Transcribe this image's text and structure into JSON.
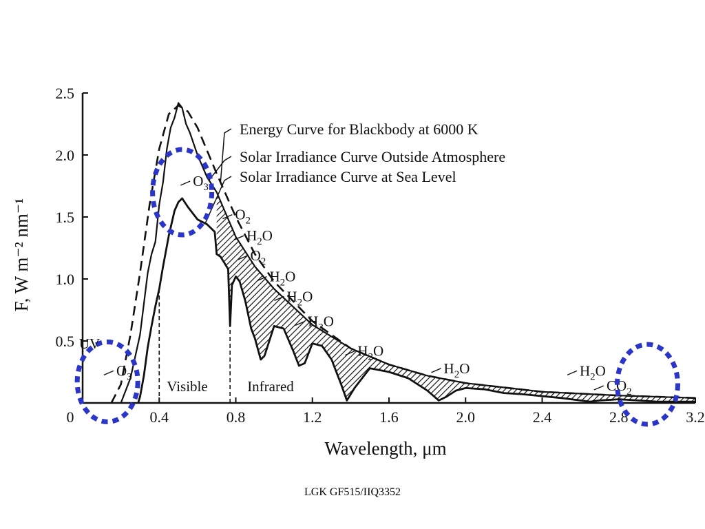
{
  "footer": {
    "caption": "LGK GF515/IIQ3352"
  },
  "colors": {
    "ink": "#111111",
    "highlight": "#2b35c8",
    "background": "#ffffff"
  },
  "chart_data": {
    "type": "line",
    "xlabel": "Wavelength, μm",
    "ylabel": "F,  W m⁻² nm⁻¹",
    "xlim": [
      0,
      3.2
    ],
    "ylim": [
      0,
      2.5
    ],
    "x_ticks": [
      {
        "value": 0,
        "label": "0"
      },
      {
        "value": 0.4,
        "label": "0.4"
      },
      {
        "value": 0.8,
        "label": "0.8"
      },
      {
        "value": 1.2,
        "label": "1.2"
      },
      {
        "value": 1.6,
        "label": "1.6"
      },
      {
        "value": 2.0,
        "label": "2.0"
      },
      {
        "value": 2.4,
        "label": "2.4"
      },
      {
        "value": 2.8,
        "label": "2.8"
      },
      {
        "value": 3.2,
        "label": "3.2"
      }
    ],
    "y_ticks": [
      {
        "value": 0.5,
        "label": "0.5"
      },
      {
        "value": 1.0,
        "label": "1.0"
      },
      {
        "value": 1.5,
        "label": "1.5"
      },
      {
        "value": 2.0,
        "label": "2.0"
      },
      {
        "value": 2.5,
        "label": "2.5"
      }
    ],
    "grid": false,
    "series": [
      {
        "name": "Energy Curve for Blackbody at 6000 K",
        "style": "dashed",
        "x": [
          0.15,
          0.2,
          0.25,
          0.3,
          0.35,
          0.4,
          0.45,
          0.5,
          0.55,
          0.6,
          0.7,
          0.8,
          0.9,
          1.0,
          1.2,
          1.4,
          1.6,
          1.8,
          2.0,
          2.4,
          2.8,
          3.2
        ],
        "y": [
          0.0,
          0.15,
          0.55,
          1.05,
          1.6,
          2.05,
          2.33,
          2.4,
          2.35,
          2.22,
          1.85,
          1.5,
          1.2,
          0.98,
          0.66,
          0.44,
          0.31,
          0.22,
          0.16,
          0.09,
          0.06,
          0.04
        ]
      },
      {
        "name": "Solar Irradiance Curve Outside Atmosphere",
        "style": "solid",
        "x": [
          0.2,
          0.25,
          0.3,
          0.32,
          0.34,
          0.36,
          0.38,
          0.4,
          0.42,
          0.44,
          0.46,
          0.48,
          0.5,
          0.52,
          0.54,
          0.56,
          0.6,
          0.65,
          0.7,
          0.8,
          0.9,
          1.0,
          1.2,
          1.4,
          1.6,
          1.8,
          2.0,
          2.4,
          2.8,
          3.2
        ],
        "y": [
          0.0,
          0.2,
          0.55,
          0.8,
          1.05,
          1.2,
          1.3,
          1.6,
          1.78,
          2.05,
          2.22,
          2.3,
          2.42,
          2.38,
          2.25,
          2.18,
          2.0,
          1.82,
          1.7,
          1.34,
          1.1,
          0.92,
          0.63,
          0.44,
          0.31,
          0.22,
          0.16,
          0.09,
          0.06,
          0.04
        ]
      },
      {
        "name": "Solar Irradiance Curve at Sea Level",
        "style": "solid",
        "x": [
          0.29,
          0.3,
          0.32,
          0.34,
          0.36,
          0.38,
          0.4,
          0.42,
          0.45,
          0.48,
          0.5,
          0.52,
          0.55,
          0.6,
          0.65,
          0.69,
          0.7,
          0.72,
          0.76,
          0.77,
          0.78,
          0.8,
          0.82,
          0.85,
          0.88,
          0.9,
          0.93,
          0.95,
          1.0,
          1.05,
          1.1,
          1.13,
          1.16,
          1.2,
          1.25,
          1.3,
          1.35,
          1.38,
          1.42,
          1.5,
          1.6,
          1.7,
          1.8,
          1.86,
          1.9,
          1.95,
          2.0,
          2.1,
          2.2,
          2.3,
          2.5,
          2.6,
          2.65,
          2.7,
          2.8,
          2.9,
          3.0,
          3.1,
          3.2
        ],
        "y": [
          0.0,
          0.05,
          0.22,
          0.45,
          0.62,
          0.78,
          0.92,
          1.1,
          1.35,
          1.55,
          1.62,
          1.65,
          1.58,
          1.48,
          1.44,
          1.38,
          1.2,
          1.18,
          1.08,
          0.62,
          0.95,
          1.02,
          0.98,
          0.82,
          0.6,
          0.52,
          0.35,
          0.38,
          0.62,
          0.6,
          0.42,
          0.3,
          0.32,
          0.48,
          0.46,
          0.35,
          0.15,
          0.02,
          0.12,
          0.28,
          0.25,
          0.2,
          0.1,
          0.02,
          0.05,
          0.1,
          0.12,
          0.11,
          0.08,
          0.07,
          0.04,
          0.02,
          0.01,
          0.02,
          0.03,
          0.02,
          0.01,
          0.01,
          0.01
        ]
      }
    ],
    "legend": {
      "placement": "top-right",
      "entries": [
        "Energy Curve for Blackbody at 6000 K",
        "Solar Irradiance Curve Outside Atmosphere",
        "Solar Irradiance Curve at Sea Level"
      ]
    },
    "region_labels": [
      "UV",
      "Visible",
      "Infrared"
    ],
    "region_boundaries": [
      0.4,
      0.77
    ],
    "absorption_labels": [
      {
        "label": "O3",
        "x": 0.14,
        "y": 0.22
      },
      {
        "label": "O3",
        "x": 0.54,
        "y": 1.75
      },
      {
        "label": "O2",
        "x": 0.76,
        "y": 1.48
      },
      {
        "label": "H2O",
        "x": 0.82,
        "y": 1.31
      },
      {
        "label": "O2",
        "x": 0.84,
        "y": 1.15
      },
      {
        "label": "H2O",
        "x": 0.94,
        "y": 0.98
      },
      {
        "label": "H2O",
        "x": 1.03,
        "y": 0.82
      },
      {
        "label": "H2O",
        "x": 1.14,
        "y": 0.62
      },
      {
        "label": "H2O",
        "x": 1.4,
        "y": 0.38
      },
      {
        "label": "H2O",
        "x": 1.85,
        "y": 0.24
      },
      {
        "label": "H2O",
        "x": 2.56,
        "y": 0.22
      },
      {
        "label": "CO2",
        "x": 2.7,
        "y": 0.1
      }
    ],
    "highlighted_regions": [
      {
        "x": 0.13,
        "y": 0.17
      },
      {
        "x": 0.52,
        "y": 1.7
      },
      {
        "x": 2.95,
        "y": 0.15
      }
    ]
  }
}
